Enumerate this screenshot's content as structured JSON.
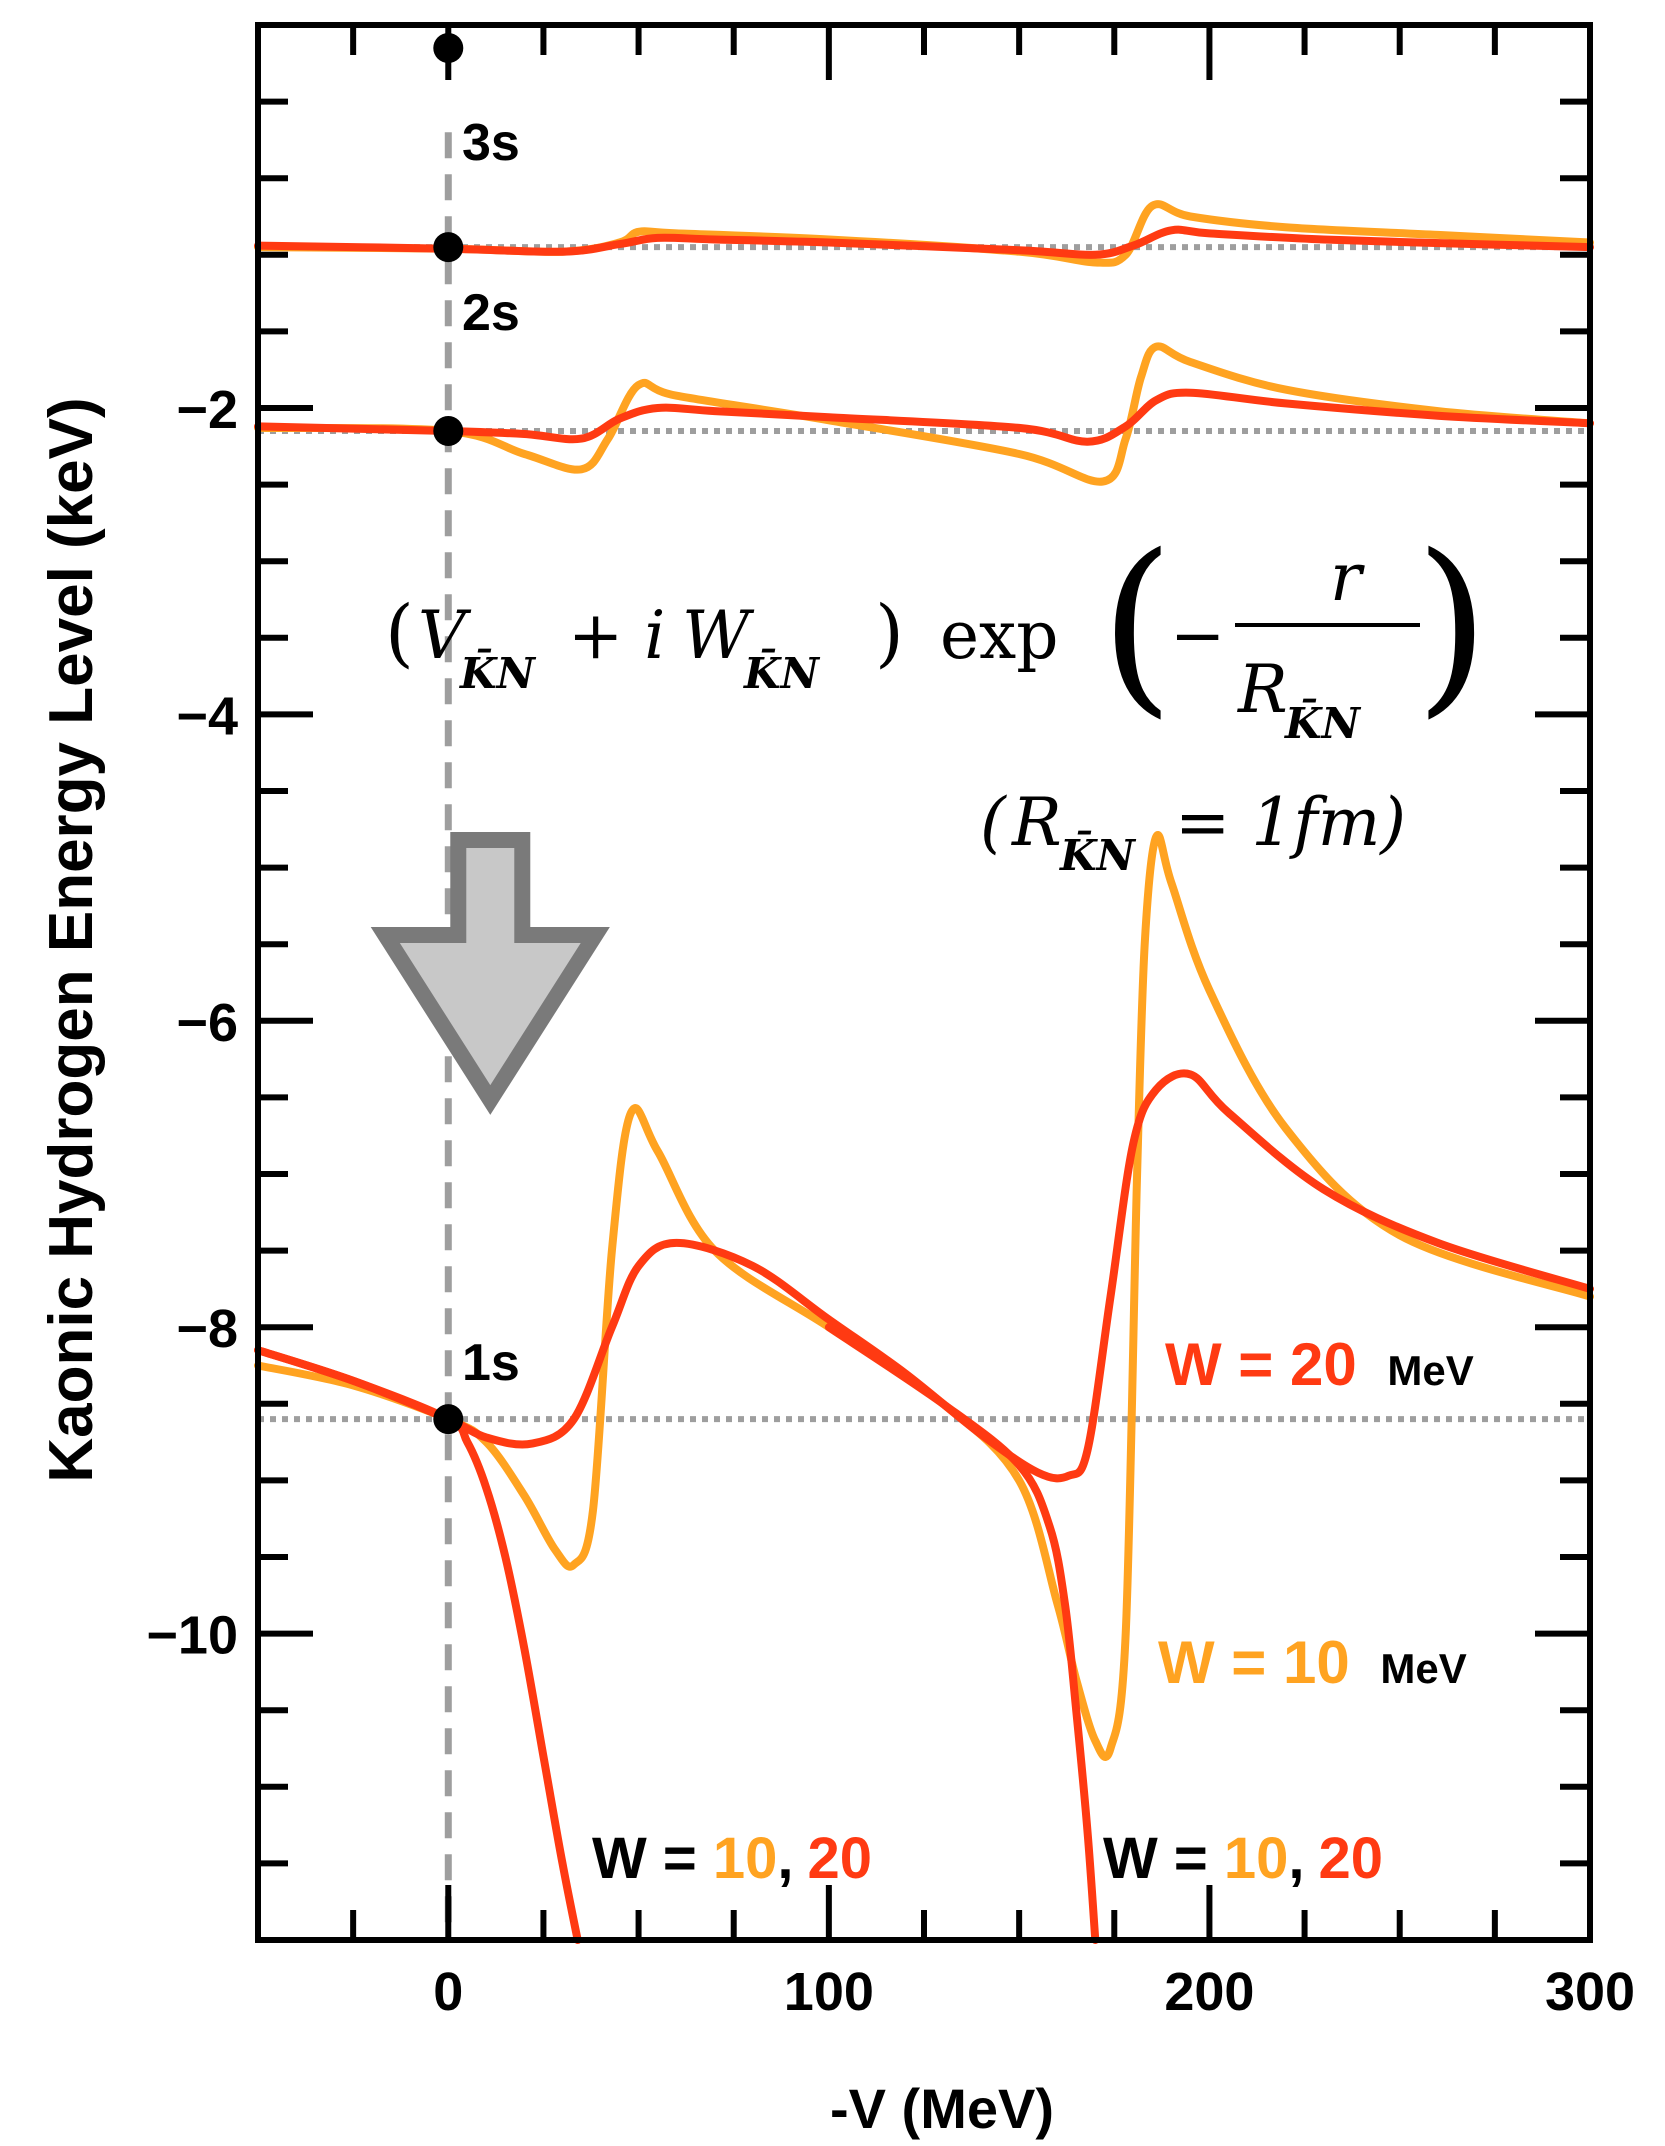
{
  "chart_data": {
    "type": "line",
    "xlabel": "-V (MeV)",
    "ylabel": "Kaonic Hydrogen Energy Level (keV)",
    "xlim": [
      -50,
      300
    ],
    "ylim": [
      -12.0,
      0.5
    ],
    "x_ticks": [
      0,
      100,
      200,
      300
    ],
    "x_tick_labels": [
      "0",
      "100",
      "200",
      "300"
    ],
    "y_ticks": [
      -2,
      -4,
      -6,
      -8,
      -10
    ],
    "y_tick_labels": [
      "−2",
      "−4",
      "−6",
      "−8",
      "−10"
    ],
    "colors": {
      "w10": "#FFA321",
      "w20": "#FF3A12",
      "reference": "#9E9E9E",
      "arrow_fill": "#C8C8C8",
      "arrow_stroke": "#7A7A7A"
    },
    "reference_levels": [
      {
        "label": "1s",
        "y": -8.6
      },
      {
        "label": "2s",
        "y": -2.15
      },
      {
        "label": "3s",
        "y": -0.95
      }
    ],
    "series": [
      {
        "color_key": "w10",
        "level": "3s",
        "x": [
          -50,
          0,
          30,
          45,
          50,
          60,
          100,
          150,
          170,
          178,
          185,
          195,
          220,
          260,
          300
        ],
        "y": [
          -0.95,
          -0.96,
          -0.98,
          -0.92,
          -0.85,
          -0.86,
          -0.9,
          -0.98,
          -1.05,
          -1.0,
          -0.68,
          -0.75,
          -0.82,
          -0.87,
          -0.92
        ]
      },
      {
        "color_key": "w20",
        "level": "3s",
        "x": [
          -50,
          0,
          30,
          45,
          55,
          70,
          100,
          150,
          170,
          180,
          190,
          200,
          230,
          270,
          300
        ],
        "y": [
          -0.94,
          -0.96,
          -0.98,
          -0.93,
          -0.89,
          -0.9,
          -0.92,
          -0.97,
          -1.0,
          -0.94,
          -0.84,
          -0.86,
          -0.9,
          -0.93,
          -0.95
        ]
      },
      {
        "color_key": "w10",
        "level": "2s",
        "x": [
          -50,
          0,
          20,
          35,
          42,
          50,
          60,
          100,
          150,
          172,
          178,
          182,
          186,
          195,
          220,
          260,
          300
        ],
        "y": [
          -2.13,
          -2.15,
          -2.3,
          -2.4,
          -2.2,
          -1.85,
          -1.92,
          -2.08,
          -2.3,
          -2.48,
          -2.2,
          -1.8,
          -1.6,
          -1.7,
          -1.88,
          -2.02,
          -2.1
        ]
      },
      {
        "color_key": "w20",
        "level": "2s",
        "x": [
          -50,
          0,
          20,
          35,
          45,
          55,
          70,
          100,
          150,
          168,
          178,
          186,
          195,
          220,
          260,
          300
        ],
        "y": [
          -2.12,
          -2.15,
          -2.17,
          -2.2,
          -2.07,
          -2.0,
          -2.02,
          -2.06,
          -2.13,
          -2.22,
          -2.12,
          -1.95,
          -1.9,
          -1.97,
          -2.05,
          -2.1
        ]
      },
      {
        "color_key": "w10",
        "level": "1s",
        "x": [
          -50,
          -25,
          0,
          10,
          20,
          28,
          33,
          38,
          43,
          48,
          55,
          70,
          100,
          130,
          150,
          160,
          165,
          170,
          174,
          178,
          181,
          183,
          186,
          190,
          200,
          220,
          250,
          300
        ],
        "y": [
          -8.25,
          -8.38,
          -8.6,
          -8.75,
          -9.1,
          -9.45,
          -9.55,
          -9.2,
          -7.5,
          -6.6,
          -6.85,
          -7.5,
          -8.0,
          -8.5,
          -9.0,
          -9.8,
          -10.3,
          -10.7,
          -10.75,
          -10.0,
          -7.0,
          -5.5,
          -4.8,
          -5.1,
          -5.8,
          -6.7,
          -7.4,
          -7.8
        ]
      },
      {
        "color_key": "w20",
        "level": "1s",
        "x": [
          -50,
          -25,
          0,
          10,
          22,
          33,
          43,
          50,
          60,
          80,
          100,
          120,
          140,
          155,
          163,
          168,
          174,
          180,
          186,
          195,
          205,
          230,
          260,
          300
        ],
        "y": [
          -8.15,
          -8.35,
          -8.6,
          -8.72,
          -8.76,
          -8.6,
          -8.0,
          -7.6,
          -7.45,
          -7.6,
          -7.95,
          -8.3,
          -8.7,
          -8.95,
          -8.97,
          -8.8,
          -7.8,
          -6.8,
          -6.45,
          -6.35,
          -6.6,
          -7.1,
          -7.45,
          -7.75
        ]
      },
      {
        "color_key": "w20",
        "level": "1s-dive-1",
        "x": [
          -50,
          -25,
          0,
          5,
          10,
          15,
          20,
          25,
          30,
          34
        ],
        "y": [
          -8.15,
          -8.35,
          -8.6,
          -8.75,
          -9.05,
          -9.5,
          -10.1,
          -10.8,
          -11.5,
          -12.0
        ]
      },
      {
        "color_key": "w20",
        "level": "1s-dive-2",
        "x": [
          100,
          130,
          150,
          158,
          162,
          165,
          168,
          170
        ],
        "y": [
          -8.0,
          -8.5,
          -8.9,
          -9.3,
          -9.8,
          -10.5,
          -11.3,
          -12.0
        ]
      }
    ],
    "annotations": {
      "level_1s": "1s",
      "level_2s": "2s",
      "level_3s": "3s",
      "w20_label": "W = 20",
      "w10_label": "W = 10",
      "unit": "MeV",
      "w_both_prefix": "W = ",
      "w_both_10": "10",
      "w_both_comma": ",",
      "w_both_20": "20"
    },
    "formula": {
      "open": "(",
      "v": "V",
      "sub": "K̄N",
      "plus": "+ i",
      "w": "W",
      "close": ")",
      "exp": "exp",
      "minus": "−",
      "r": "r",
      "R": "R",
      "paren_r_open": "(",
      "eq": "= 1fm)"
    }
  }
}
